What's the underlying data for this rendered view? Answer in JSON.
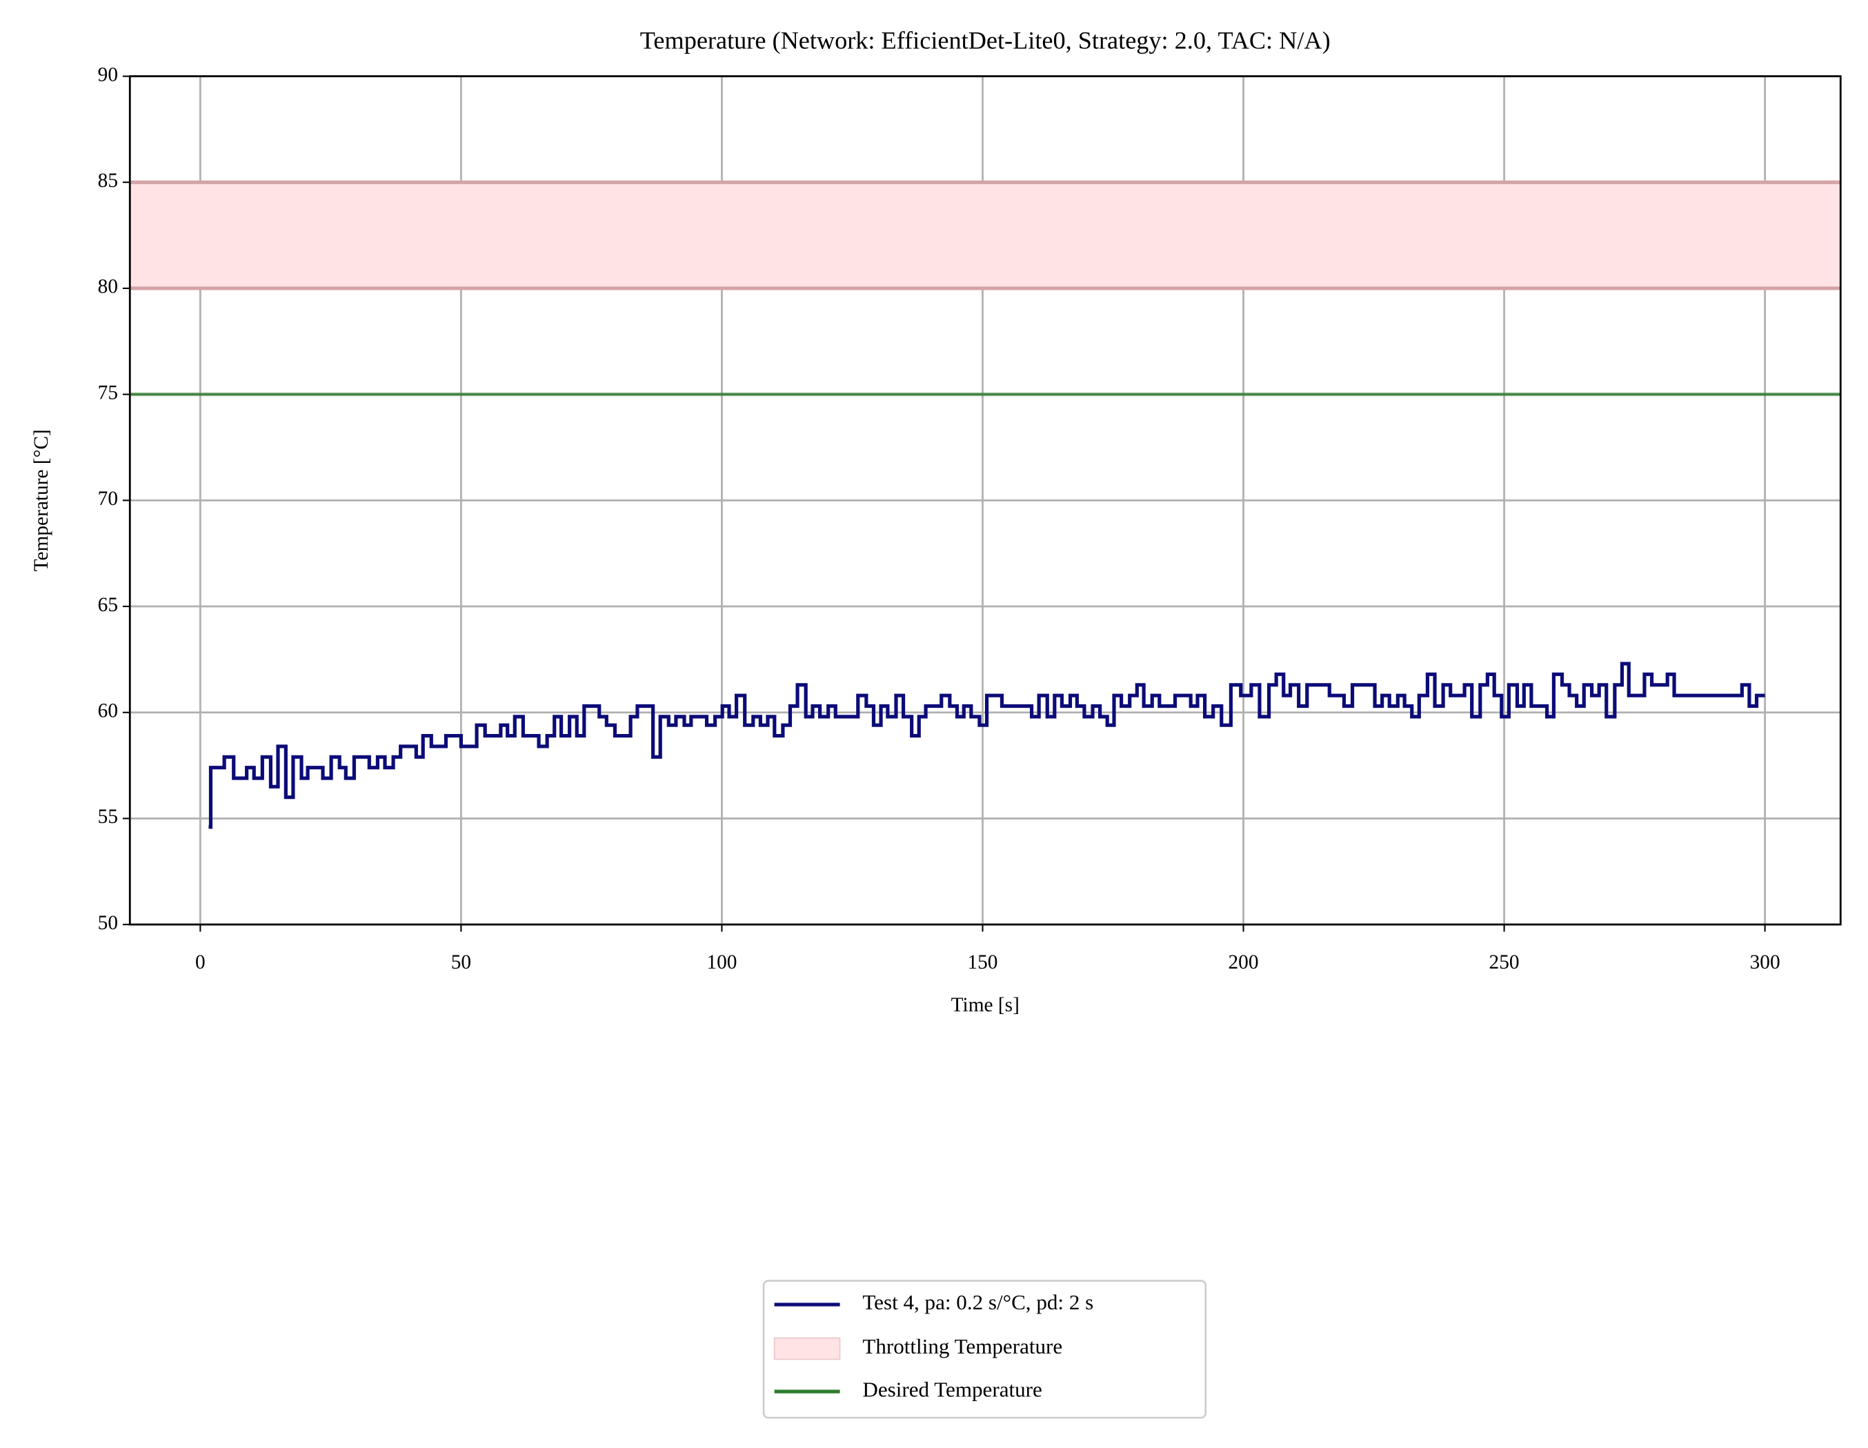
{
  "chart_data": {
    "type": "line",
    "title": "Temperature (Network: EfficientDet-Lite0, Strategy: 2.0, TAC: N/A)",
    "x_label": "Time [s]",
    "y_label": "Temperature [°C]",
    "xlim": [
      -13.5,
      314.5
    ],
    "ylim": [
      50,
      90
    ],
    "xticks": [
      0,
      50,
      100,
      150,
      200,
      250,
      300
    ],
    "yticks": [
      50,
      55,
      60,
      65,
      70,
      75,
      80,
      85,
      90
    ],
    "grid": true,
    "legend": "below",
    "drawstyle": "steps-post",
    "throttling": {
      "name": "Throttling Temperature",
      "range": [
        80,
        85
      ],
      "color": "#ffe3e5",
      "edge_color": "#d4a3a6"
    },
    "desired": {
      "name": "Desired Temperature",
      "value": 75,
      "color": "#2e7d2e"
    },
    "series": [
      {
        "name": "Test 4, pa: 0.2 s/°C, pd: 2 s",
        "color": "#0b0b78",
        "x": [
          1.6,
          2,
          4.6,
          6.4,
          8.9,
          10.3,
          11.9,
          13.5,
          14.9,
          16.4,
          17.8,
          19.4,
          20.6,
          23.5,
          25.1,
          26.7,
          27.9,
          29.5,
          32.4,
          34,
          35.4,
          37,
          38.4,
          41.4,
          42.7,
          44.3,
          47.1,
          50,
          53,
          54.6,
          57.6,
          58.9,
          60.3,
          61.9,
          64.9,
          66.5,
          67.9,
          69.2,
          70.8,
          72.2,
          73.6,
          76.5,
          77.9,
          79.5,
          82.5,
          83.8,
          86.8,
          88.2,
          89.8,
          91.2,
          92.8,
          94.1,
          97.1,
          98.7,
          100.1,
          101.4,
          102.8,
          104.4,
          106,
          107.4,
          108.8,
          110.1,
          111.7,
          113.1,
          114.5,
          116.1,
          117.4,
          118.8,
          120.4,
          121.8,
          126.1,
          127.7,
          129.1,
          130.5,
          131.8,
          133.4,
          134.8,
          136.4,
          137.8,
          139.1,
          142.1,
          143.7,
          145.1,
          146.4,
          147.8,
          149.4,
          150.8,
          153.7,
          159.4,
          160.8,
          162.4,
          163.8,
          165.2,
          166.8,
          168.1,
          169.5,
          171.1,
          172.5,
          173.9,
          175.2,
          176.6,
          178.2,
          179.6,
          180.9,
          182.5,
          183.9,
          186.9,
          189.9,
          191.2,
          192.6,
          194.2,
          195.8,
          197.6,
          199.5,
          201.5,
          203.1,
          204.9,
          206.3,
          207.7,
          209,
          210.6,
          212.2,
          216.5,
          219.3,
          220.9,
          225.2,
          226.6,
          228,
          229.6,
          230.9,
          232.3,
          233.7,
          235.3,
          236.7,
          238.3,
          239.7,
          242.4,
          243.8,
          245.4,
          246.8,
          248.1,
          249.5,
          250.9,
          252.5,
          253.8,
          255.2,
          258.2,
          259.5,
          261.1,
          262.5,
          263.9,
          265.3,
          266.8,
          268.2,
          269.6,
          271.2,
          272.6,
          273.9,
          276.9,
          278.3,
          281.3,
          282.6,
          295.6,
          297,
          298.4,
          300
        ],
        "values": [
          54.6,
          57.4,
          57.9,
          56.9,
          57.4,
          56.9,
          57.9,
          56.5,
          58.4,
          56.0,
          57.9,
          56.9,
          57.4,
          56.9,
          57.9,
          57.4,
          56.9,
          57.9,
          57.4,
          57.9,
          57.4,
          57.9,
          58.4,
          57.9,
          58.9,
          58.4,
          58.9,
          58.4,
          59.4,
          58.9,
          59.4,
          58.9,
          59.8,
          58.9,
          58.4,
          58.9,
          59.8,
          58.9,
          59.8,
          58.9,
          60.3,
          59.8,
          59.4,
          58.9,
          59.8,
          60.3,
          57.9,
          59.8,
          59.4,
          59.8,
          59.4,
          59.8,
          59.4,
          59.8,
          60.3,
          59.8,
          60.8,
          59.4,
          59.8,
          59.4,
          59.8,
          58.9,
          59.4,
          60.3,
          61.3,
          59.8,
          60.3,
          59.8,
          60.3,
          59.8,
          60.8,
          60.3,
          59.4,
          60.3,
          59.8,
          60.8,
          59.8,
          58.9,
          59.8,
          60.3,
          60.8,
          60.3,
          59.8,
          60.3,
          59.8,
          59.4,
          60.8,
          60.3,
          59.8,
          60.8,
          59.8,
          60.8,
          60.3,
          60.8,
          60.3,
          59.8,
          60.3,
          59.8,
          59.4,
          60.8,
          60.3,
          60.8,
          61.3,
          60.3,
          60.8,
          60.3,
          60.8,
          60.3,
          60.8,
          59.8,
          60.3,
          59.4,
          61.3,
          60.8,
          61.3,
          59.8,
          61.3,
          61.8,
          60.8,
          61.3,
          60.3,
          61.3,
          60.8,
          60.3,
          61.3,
          60.3,
          60.8,
          60.3,
          60.8,
          60.3,
          59.8,
          60.8,
          61.8,
          60.3,
          61.3,
          60.8,
          61.3,
          59.8,
          61.3,
          61.8,
          60.8,
          59.8,
          61.3,
          60.3,
          61.3,
          60.3,
          59.8,
          61.8,
          61.3,
          60.8,
          60.3,
          61.3,
          60.8,
          61.3,
          59.8,
          61.3,
          62.3,
          60.8,
          61.8,
          61.3,
          61.8,
          60.8,
          61.3,
          60.3,
          60.8,
          60.8
        ]
      }
    ]
  }
}
